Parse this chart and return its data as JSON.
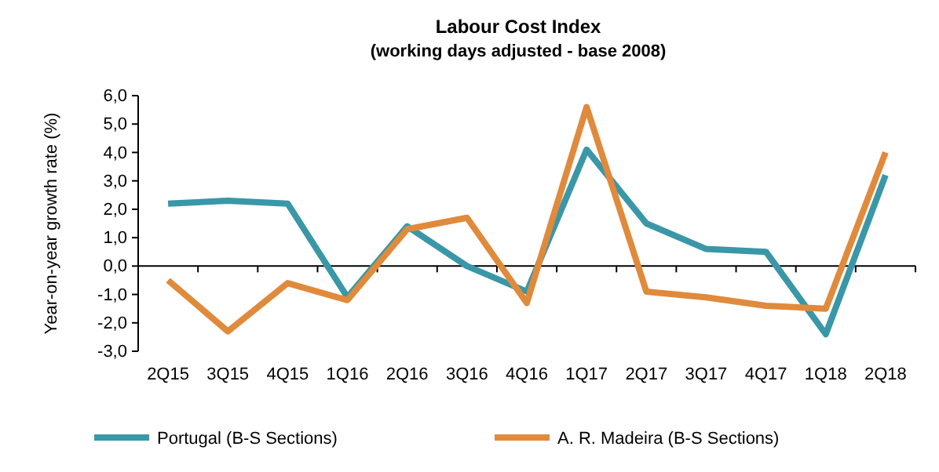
{
  "chart_data": {
    "type": "line",
    "title": "Labour Cost Index",
    "subtitle": "(working days adjusted - base 2008)",
    "ylabel": "Year-on-year growth rate (%)",
    "categories": [
      "2Q15",
      "3Q15",
      "4Q15",
      "1Q16",
      "2Q16",
      "3Q16",
      "4Q16",
      "1Q17",
      "2Q17",
      "3Q17",
      "4Q17",
      "1Q18",
      "2Q18"
    ],
    "series": [
      {
        "name": "Portugal (B-S Sections)",
        "color": "#3a97a8",
        "values": [
          2.2,
          2.3,
          2.2,
          -1.1,
          1.4,
          0.0,
          -0.9,
          4.1,
          1.5,
          0.6,
          0.5,
          -2.4,
          3.2
        ]
      },
      {
        "name": "A. R. Madeira (B-S Sections)",
        "color": "#e08a3c",
        "values": [
          -0.5,
          -2.3,
          -0.6,
          -1.2,
          1.3,
          1.7,
          -1.3,
          5.6,
          -0.9,
          -1.1,
          -1.4,
          -1.5,
          4.0
        ]
      }
    ],
    "ylim": [
      -3,
      6
    ],
    "yticks": [
      {
        "value": -3,
        "label": "-3,0"
      },
      {
        "value": -2,
        "label": "-2,0"
      },
      {
        "value": -1,
        "label": "-1,0"
      },
      {
        "value": 0,
        "label": "0,0"
      },
      {
        "value": 1,
        "label": "1,0"
      },
      {
        "value": 2,
        "label": "2,0"
      },
      {
        "value": 3,
        "label": "3,0"
      },
      {
        "value": 4,
        "label": "4,0"
      },
      {
        "value": 5,
        "label": "5,0"
      },
      {
        "value": 6,
        "label": "6,0"
      }
    ],
    "legend": "bottom",
    "marker": "none",
    "line_style": "solid"
  }
}
